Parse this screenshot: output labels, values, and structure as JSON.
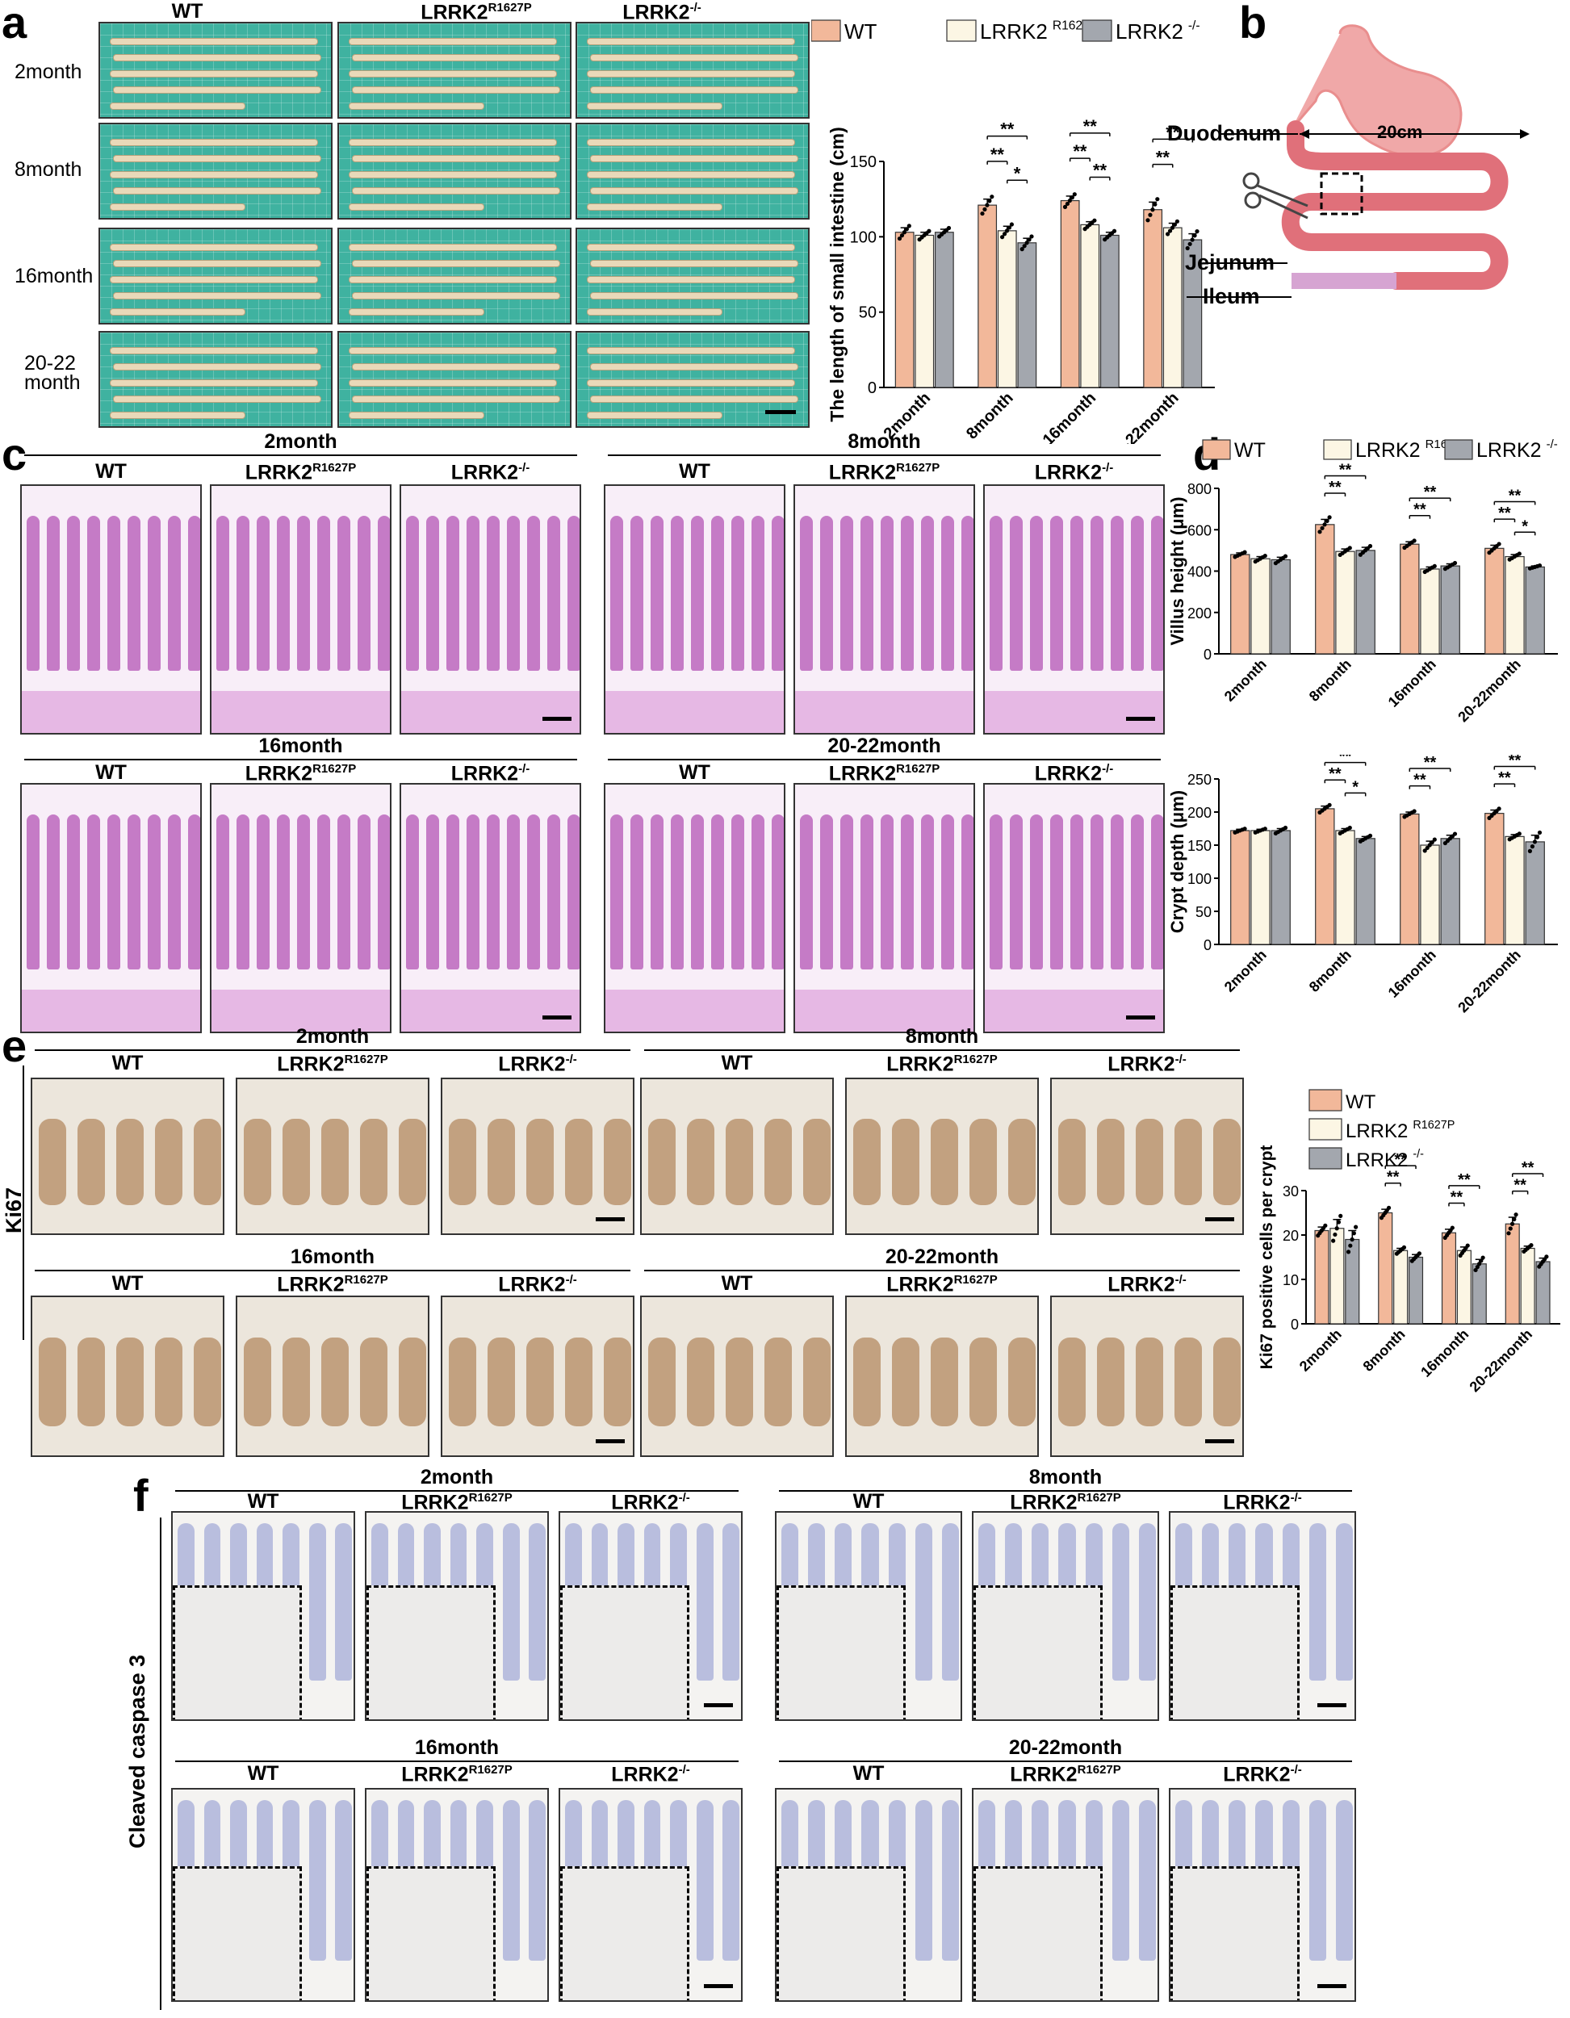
{
  "panels": {
    "a": "a",
    "b": "b",
    "c": "c",
    "d": "d",
    "e": "e",
    "f": "f"
  },
  "genotypes": {
    "wt": "WT",
    "r1627p": "LRRK2",
    "r1627p_sup": "R1627P",
    "ko": "LRRK2",
    "ko_sup": "-/-"
  },
  "ages": {
    "m2": "2month",
    "m8": "8month",
    "m16": "16month",
    "m20": "20-22month",
    "m20_line1": "20-22",
    "m20_line2": "month"
  },
  "stain_labels": {
    "ki67": "Ki67",
    "caspase": "Cleaved caspase 3"
  },
  "anatomy": {
    "duodenum": "Duodenum",
    "jejunum": "Jejunum",
    "ileum": "Ileum",
    "distance": "20cm"
  },
  "colors": {
    "wt": "#f2b89a",
    "r1627p": "#fcf6e4",
    "ko": "#a3a7ae",
    "intestine": "#e0707a",
    "ileum": "#d6a4d2",
    "stomach": "#f0a8a8"
  },
  "chart_data": [
    {
      "id": "intestine-length",
      "type": "bar",
      "panel": "a",
      "categories": [
        "2month",
        "8month",
        "16month",
        "20-22month"
      ],
      "ylabel": "The length of small intestine (cm)",
      "ylim": [
        0,
        150
      ],
      "yticks": [
        0,
        50,
        100,
        150
      ],
      "legend": {
        "placement": "top",
        "entries": [
          "WT",
          "LRRK2 R1627P",
          "LRRK2 -/-"
        ]
      },
      "series": [
        {
          "name": "WT",
          "values": [
            103,
            121,
            124,
            118
          ],
          "errors": [
            3,
            4,
            3,
            5
          ]
        },
        {
          "name": "LRRK2 R1627P",
          "values": [
            101,
            104,
            108,
            106
          ],
          "errors": [
            2,
            3,
            2,
            3
          ]
        },
        {
          "name": "LRRK2 -/-",
          "values": [
            103,
            96,
            101,
            98
          ],
          "errors": [
            2,
            3,
            2,
            4
          ]
        }
      ],
      "significance": [
        {
          "cat": 1,
          "pairs": [
            [
              "WT",
              "LRRK2 -/-",
              "**"
            ],
            [
              "WT",
              "LRRK2 R1627P",
              "**"
            ],
            [
              "LRRK2 R1627P",
              "LRRK2 -/-",
              "*"
            ]
          ]
        },
        {
          "cat": 2,
          "pairs": [
            [
              "WT",
              "LRRK2 -/-",
              "**"
            ],
            [
              "WT",
              "LRRK2 R1627P",
              "**"
            ],
            [
              "LRRK2 R1627P",
              "LRRK2 -/-",
              "**"
            ]
          ]
        },
        {
          "cat": 3,
          "pairs": [
            [
              "WT",
              "LRRK2 -/-",
              "**"
            ],
            [
              "WT",
              "LRRK2 R1627P",
              "**"
            ]
          ]
        }
      ]
    },
    {
      "id": "villus-height",
      "type": "bar",
      "panel": "d",
      "categories": [
        "2month",
        "8month",
        "16month",
        "20-22month"
      ],
      "ylabel": "Villus height (μm)",
      "ylim": [
        0,
        800
      ],
      "yticks": [
        0,
        200,
        400,
        600,
        800
      ],
      "legend": {
        "placement": "top",
        "entries": [
          "WT",
          "LRRK2 R1627P",
          "LRRK2 -/-"
        ]
      },
      "series": [
        {
          "name": "WT",
          "values": [
            480,
            625,
            530,
            510
          ],
          "errors": [
            8,
            25,
            12,
            15
          ]
        },
        {
          "name": "LRRK2 R1627P",
          "values": [
            460,
            495,
            410,
            470
          ],
          "errors": [
            10,
            12,
            10,
            10
          ]
        },
        {
          "name": "LRRK2 -/-",
          "values": [
            455,
            500,
            425,
            420
          ],
          "errors": [
            12,
            15,
            10,
            5
          ]
        }
      ],
      "significance": [
        {
          "cat": 1,
          "pairs": [
            [
              "WT",
              "LRRK2 -/-",
              "**"
            ],
            [
              "WT",
              "LRRK2 R1627P",
              "**"
            ]
          ]
        },
        {
          "cat": 2,
          "pairs": [
            [
              "WT",
              "LRRK2 -/-",
              "**"
            ],
            [
              "WT",
              "LRRK2 R1627P",
              "**"
            ]
          ]
        },
        {
          "cat": 3,
          "pairs": [
            [
              "WT",
              "LRRK2 -/-",
              "**"
            ],
            [
              "WT",
              "LRRK2 R1627P",
              "**"
            ],
            [
              "LRRK2 R1627P",
              "LRRK2 -/-",
              "*"
            ]
          ]
        }
      ]
    },
    {
      "id": "crypt-depth",
      "type": "bar",
      "panel": "d",
      "categories": [
        "2month",
        "8month",
        "16month",
        "20-22month"
      ],
      "ylabel": "Crypt depth (μm)",
      "ylim": [
        0,
        250
      ],
      "yticks": [
        0,
        50,
        100,
        150,
        200,
        250
      ],
      "series": [
        {
          "name": "WT",
          "values": [
            172,
            205,
            197,
            198
          ],
          "errors": [
            2,
            4,
            3,
            5
          ]
        },
        {
          "name": "LRRK2 R1627P",
          "values": [
            172,
            172,
            150,
            163
          ],
          "errors": [
            2,
            3,
            6,
            3
          ]
        },
        {
          "name": "LRRK2 -/-",
          "values": [
            172,
            160,
            160,
            155
          ],
          "errors": [
            3,
            3,
            5,
            10
          ]
        }
      ],
      "significance": [
        {
          "cat": 1,
          "pairs": [
            [
              "WT",
              "LRRK2 -/-",
              "**"
            ],
            [
              "WT",
              "LRRK2 R1627P",
              "**"
            ],
            [
              "LRRK2 R1627P",
              "LRRK2 -/-",
              "*"
            ]
          ]
        },
        {
          "cat": 2,
          "pairs": [
            [
              "WT",
              "LRRK2 -/-",
              "**"
            ],
            [
              "WT",
              "LRRK2 R1627P",
              "**"
            ]
          ]
        },
        {
          "cat": 3,
          "pairs": [
            [
              "WT",
              "LRRK2 -/-",
              "**"
            ],
            [
              "WT",
              "LRRK2 R1627P",
              "**"
            ]
          ]
        }
      ]
    },
    {
      "id": "ki67-positive",
      "type": "bar",
      "panel": "e",
      "categories": [
        "2month",
        "8month",
        "16month",
        "20-22month"
      ],
      "ylabel": "Ki67 positive cells per crypt",
      "ylim": [
        0,
        30
      ],
      "yticks": [
        0,
        10,
        20,
        30
      ],
      "legend": {
        "placement": "top",
        "entries": [
          "WT",
          "LRRK2 R1627P",
          "LRRK2 -/-"
        ]
      },
      "series": [
        {
          "name": "WT",
          "values": [
            21,
            25,
            20.5,
            22.5
          ],
          "errors": [
            0.8,
            0.8,
            0.8,
            1.5
          ]
        },
        {
          "name": "LRRK2 R1627P",
          "values": [
            21.5,
            16.5,
            16.5,
            17
          ],
          "errors": [
            2,
            0.5,
            0.8,
            0.5
          ]
        },
        {
          "name": "LRRK2 -/-",
          "values": [
            19,
            15,
            13.5,
            14
          ],
          "errors": [
            2,
            0.6,
            1,
            0.8
          ]
        }
      ],
      "significance": [
        {
          "cat": 1,
          "pairs": [
            [
              "WT",
              "LRRK2 -/-",
              "**"
            ],
            [
              "WT",
              "LRRK2 R1627P",
              "**"
            ]
          ]
        },
        {
          "cat": 2,
          "pairs": [
            [
              "WT",
              "LRRK2 -/-",
              "**"
            ],
            [
              "WT",
              "LRRK2 R1627P",
              "**"
            ]
          ]
        },
        {
          "cat": 3,
          "pairs": [
            [
              "WT",
              "LRRK2 -/-",
              "**"
            ],
            [
              "WT",
              "LRRK2 R1627P",
              "**"
            ]
          ]
        }
      ]
    }
  ]
}
